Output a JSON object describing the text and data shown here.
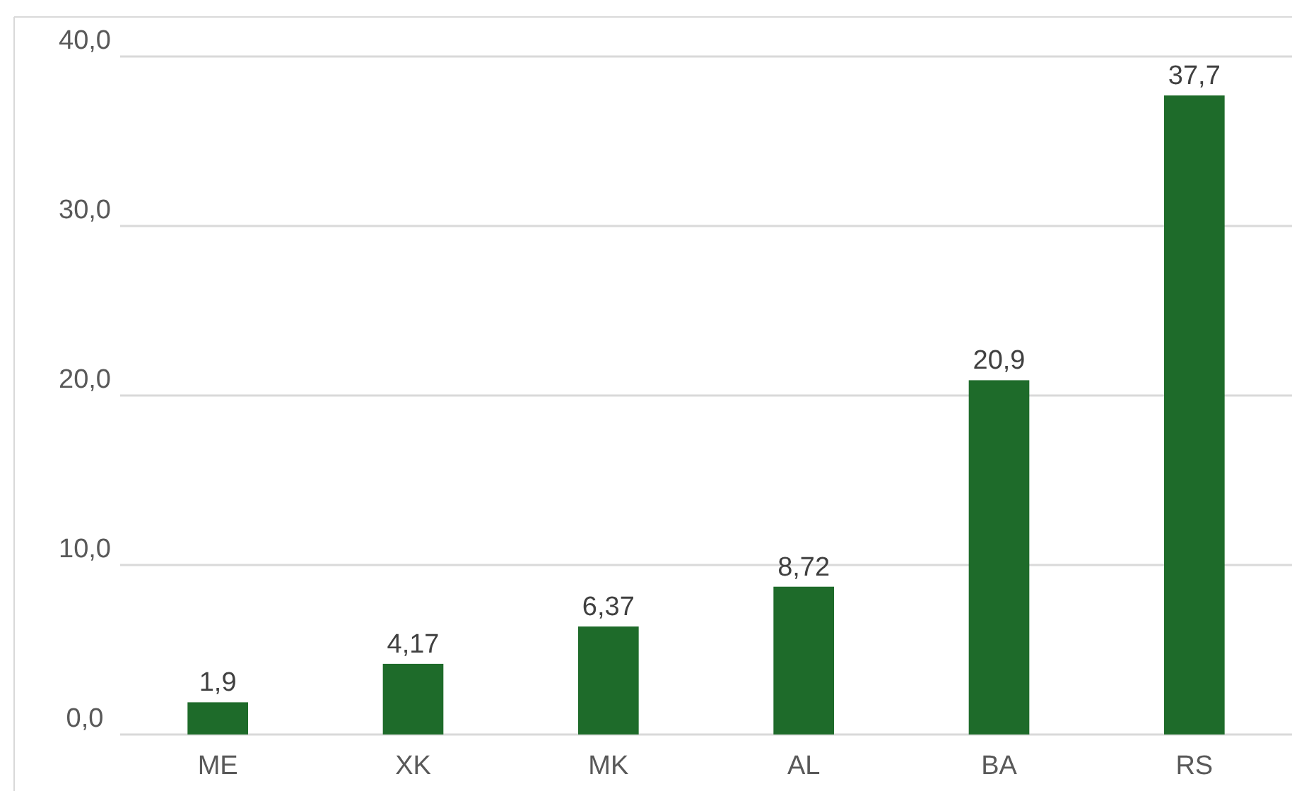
{
  "chart_data": {
    "type": "bar",
    "categories": [
      "ME",
      "XK",
      "MK",
      "AL",
      "BA",
      "RS"
    ],
    "values": [
      1.9,
      4.17,
      6.37,
      8.72,
      20.9,
      37.7
    ],
    "value_labels": [
      "1,9",
      "4,17",
      "6,37",
      "8,72",
      "20,9",
      "37,7"
    ],
    "color": "#1e6b2a",
    "ylim": [
      0,
      40
    ],
    "yticks": [
      {
        "value": 0,
        "label": "0,0"
      },
      {
        "value": 10,
        "label": "10,0"
      },
      {
        "value": 20,
        "label": "20,0"
      },
      {
        "value": 30,
        "label": "30,0"
      },
      {
        "value": 40,
        "label": "40,0"
      }
    ],
    "grid": "y"
  }
}
